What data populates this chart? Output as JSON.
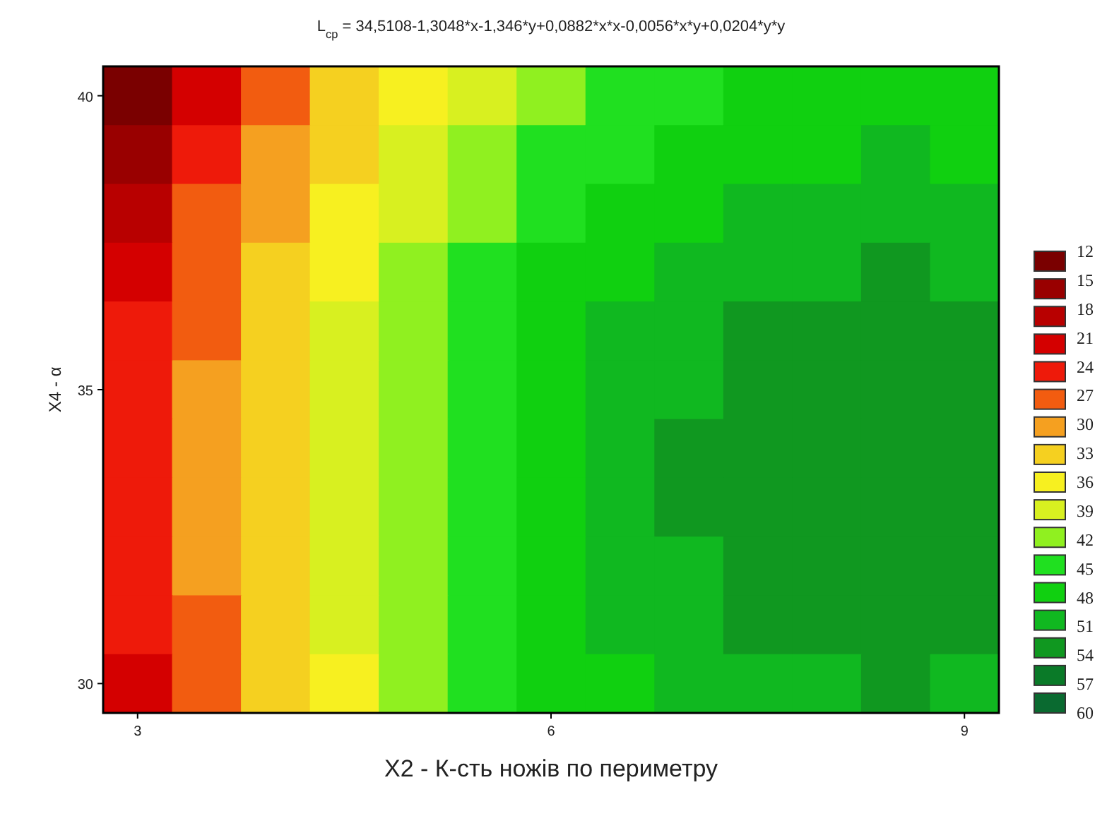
{
  "chart_data": {
    "type": "heatmap",
    "title": "L$_{ср}$ = 34,5108-1,3048*x-1,346*y+0,0882*x*x-0,0056*x*y+0,0204*y*y",
    "xlabel": "X2 - К-сть ножів по периметру",
    "ylabel": "X4 - α",
    "categories": [
      "3",
      null,
      null,
      null,
      null,
      null,
      "6",
      null,
      null,
      null,
      null,
      null,
      "9"
    ],
    "y_categories": [
      "40",
      null,
      null,
      null,
      null,
      "35",
      null,
      null,
      null,
      null,
      "30"
    ],
    "cells": [
      [
        12,
        21,
        27,
        33,
        36,
        39,
        42,
        45,
        45,
        48,
        48,
        48,
        48
      ],
      [
        15,
        24,
        30,
        33,
        39,
        42,
        45,
        45,
        48,
        48,
        48,
        51,
        48
      ],
      [
        18,
        27,
        30,
        36,
        39,
        42,
        45,
        48,
        48,
        51,
        51,
        51,
        51
      ],
      [
        21,
        27,
        33,
        36,
        42,
        45,
        48,
        48,
        51,
        51,
        51,
        54,
        51
      ],
      [
        24,
        27,
        33,
        39,
        42,
        45,
        48,
        51,
        51,
        54,
        54,
        54,
        54
      ],
      [
        24,
        30,
        33,
        39,
        42,
        45,
        48,
        51,
        51,
        54,
        54,
        54,
        54
      ],
      [
        24,
        30,
        33,
        39,
        42,
        45,
        48,
        51,
        54,
        54,
        54,
        54,
        54
      ],
      [
        24,
        30,
        33,
        39,
        42,
        45,
        48,
        51,
        54,
        54,
        54,
        54,
        54
      ],
      [
        24,
        30,
        33,
        39,
        42,
        45,
        48,
        51,
        51,
        54,
        54,
        54,
        54
      ],
      [
        24,
        27,
        33,
        39,
        42,
        45,
        48,
        51,
        51,
        54,
        54,
        54,
        54
      ],
      [
        21,
        27,
        33,
        36,
        42,
        45,
        48,
        48,
        51,
        51,
        51,
        54,
        51
      ]
    ],
    "clim": [
      12,
      60
    ],
    "cticks": [
      12,
      15,
      18,
      21,
      24,
      27,
      30,
      33,
      36,
      39,
      42,
      45,
      48,
      51,
      54,
      57,
      60
    ],
    "colors": [
      "#7a0000",
      "#990000",
      "#b80000",
      "#d40000",
      "#ee1a0a",
      "#f25c10",
      "#f5a020",
      "#f5d020",
      "#f7f020",
      "#d8f020",
      "#90f020",
      "#20e020",
      "#10d010",
      "#10b820",
      "#109820",
      "#0a7a28",
      "#0a6a30"
    ]
  }
}
